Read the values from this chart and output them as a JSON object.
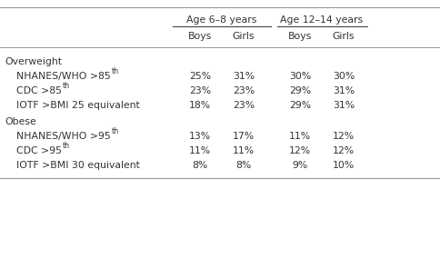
{
  "col_group_labels": [
    "Age 6–8 years",
    "Age 12–14 years"
  ],
  "col_sub_labels": [
    "Boys",
    "Girls",
    "Boys",
    "Girls"
  ],
  "row_groups": [
    {
      "group_label": "Overweight",
      "rows": [
        {
          "label": "NHANES/WHO >85",
          "superscript": "th",
          "values": [
            "25%",
            "31%",
            "30%",
            "30%"
          ]
        },
        {
          "label": "CDC >85",
          "superscript": "th",
          "values": [
            "23%",
            "23%",
            "29%",
            "31%"
          ]
        },
        {
          "label": "IOTF >BMI 25 equivalent",
          "superscript": "",
          "values": [
            "18%",
            "23%",
            "29%",
            "31%"
          ]
        }
      ]
    },
    {
      "group_label": "Obese",
      "rows": [
        {
          "label": "NHANES/WHO >95",
          "superscript": "th",
          "values": [
            "13%",
            "17%",
            "11%",
            "12%"
          ]
        },
        {
          "label": "CDC >95",
          "superscript": "th",
          "values": [
            "11%",
            "11%",
            "12%",
            "12%"
          ]
        },
        {
          "label": "IOTF >BMI 30 equivalent",
          "superscript": "",
          "values": [
            "8%",
            "8%",
            "9%",
            "10%"
          ]
        }
      ]
    }
  ],
  "background_color": "#ffffff",
  "text_color": "#333333",
  "line_color": "#999999",
  "font_size": 7.8,
  "sup_font_size": 5.8
}
